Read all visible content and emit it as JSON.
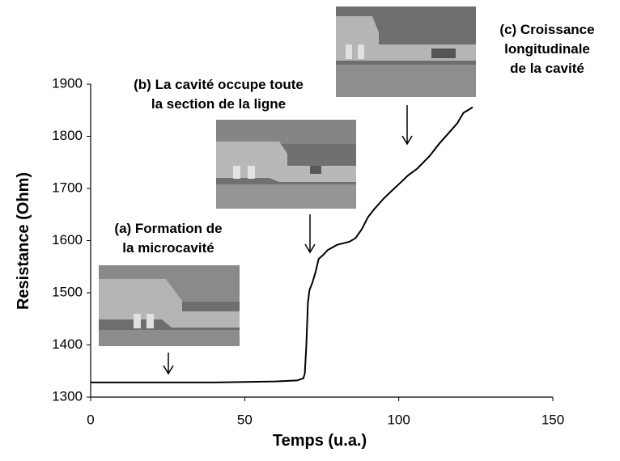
{
  "chart_data": {
    "type": "line",
    "x_label": "Temps (u.a.)",
    "y_label": "Resistance (Ohm)",
    "xlim": [
      0,
      150
    ],
    "xticks": [
      0,
      50,
      100,
      150
    ],
    "ylim": [
      1300,
      1900
    ],
    "yticks": [
      1300,
      1400,
      1500,
      1600,
      1700,
      1800,
      1900
    ],
    "series": [
      {
        "color": "#000000",
        "x": [
          0,
          10,
          20,
          30,
          40,
          50,
          60,
          67,
          69,
          69.5,
          70,
          70.5,
          71,
          72,
          73,
          74,
          75,
          77,
          80,
          84,
          86,
          88,
          90,
          92,
          95,
          98,
          100,
          103,
          106,
          110,
          113,
          116,
          119,
          121,
          123,
          124
        ],
        "values": [
          1328,
          1328,
          1328,
          1328,
          1328,
          1329,
          1330,
          1332,
          1336,
          1345,
          1400,
          1480,
          1505,
          1520,
          1540,
          1565,
          1570,
          1582,
          1592,
          1598,
          1605,
          1622,
          1645,
          1660,
          1680,
          1697,
          1708,
          1725,
          1738,
          1762,
          1785,
          1805,
          1825,
          1845,
          1852,
          1856
        ]
      }
    ],
    "annotations": [
      {
        "lines": [
          "(a) Formation de",
          "la microcavité"
        ]
      },
      {
        "lines": [
          "(b) La cavité occupe toute",
          "la section de la ligne"
        ]
      },
      {
        "lines": [
          "(c) Croissance",
          "longitudinale",
          "de la cavité"
        ]
      }
    ]
  }
}
